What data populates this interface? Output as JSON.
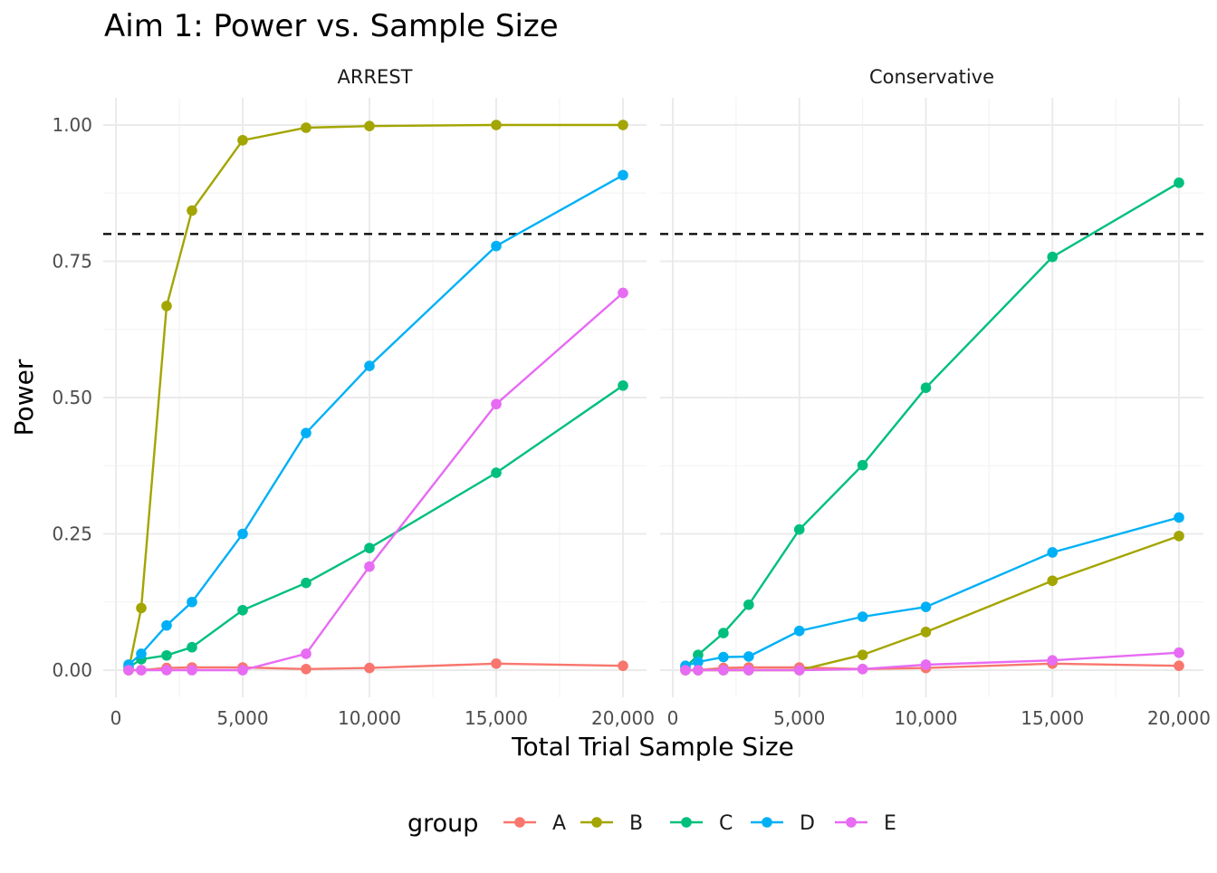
{
  "chart_data": {
    "type": "line",
    "title": "Aim 1: Power vs. Sample Size",
    "xlabel": "Total Trial Sample Size",
    "ylabel": "Power",
    "xlim": [
      0,
      20000
    ],
    "ylim": [
      0,
      1
    ],
    "x_ticks": [
      "0",
      "5,000",
      "10,000",
      "15,000",
      "20,000"
    ],
    "y_ticks": [
      "0.00",
      "0.25",
      "0.50",
      "0.75",
      "1.00"
    ],
    "reference_line": {
      "y": 0.8,
      "style": "dashed",
      "color": "#000000"
    },
    "grid": true,
    "legend": {
      "title": "group",
      "position": "bottom"
    },
    "group_colors": {
      "A": "#F8766D",
      "B": "#A3A500",
      "C": "#00BF7D",
      "D": "#00B0F6",
      "E": "#E76BF3"
    },
    "panels": [
      {
        "name": "ARREST",
        "x": [
          500,
          1000,
          2000,
          3000,
          5000,
          7500,
          10000,
          15000,
          20000
        ],
        "series": [
          {
            "name": "A",
            "values": [
              0.0,
              0.0,
              0.004,
              0.005,
              0.005,
              0.002,
              0.004,
              0.012,
              0.008
            ]
          },
          {
            "name": "B",
            "values": [
              0.0,
              0.114,
              0.668,
              0.843,
              0.972,
              0.995,
              0.998,
              1.0,
              1.0
            ]
          },
          {
            "name": "C",
            "values": [
              0.005,
              0.02,
              0.027,
              0.042,
              0.11,
              0.16,
              0.224,
              0.362,
              0.522
            ]
          },
          {
            "name": "D",
            "values": [
              0.01,
              0.03,
              0.082,
              0.125,
              0.25,
              0.435,
              0.558,
              0.778,
              0.908
            ]
          },
          {
            "name": "E",
            "values": [
              0.0,
              0.0,
              0.0,
              0.0,
              0.0,
              0.03,
              0.19,
              0.488,
              0.692
            ]
          }
        ]
      },
      {
        "name": "Conservative",
        "x": [
          500,
          1000,
          2000,
          3000,
          5000,
          7500,
          10000,
          15000,
          20000
        ],
        "series": [
          {
            "name": "A",
            "values": [
              0.0,
              0.0,
              0.004,
              0.005,
              0.005,
              0.002,
              0.004,
              0.012,
              0.008
            ]
          },
          {
            "name": "B",
            "values": [
              0.0,
              0.0,
              0.0,
              0.0,
              0.0,
              0.028,
              0.07,
              0.164,
              0.246
            ]
          },
          {
            "name": "C",
            "values": [
              0.005,
              0.028,
              0.068,
              0.12,
              0.258,
              0.376,
              0.518,
              0.758,
              0.894
            ]
          },
          {
            "name": "D",
            "values": [
              0.008,
              0.015,
              0.024,
              0.025,
              0.072,
              0.098,
              0.116,
              0.216,
              0.28
            ]
          },
          {
            "name": "E",
            "values": [
              0.0,
              0.0,
              0.0,
              0.0,
              0.0,
              0.002,
              0.01,
              0.018,
              0.032
            ]
          }
        ]
      }
    ]
  }
}
